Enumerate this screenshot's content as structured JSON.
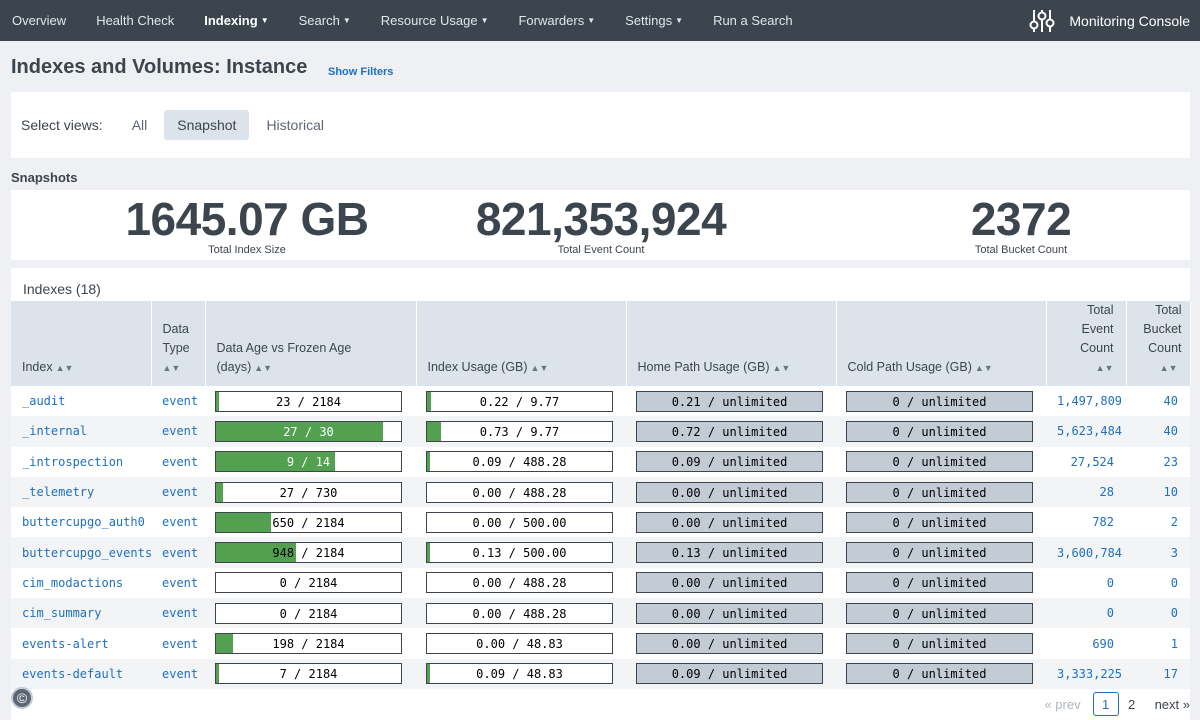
{
  "nav": {
    "items": [
      {
        "label": "Overview",
        "caret": false,
        "active": false
      },
      {
        "label": "Health Check",
        "caret": false,
        "active": false
      },
      {
        "label": "Indexing",
        "caret": true,
        "active": true
      },
      {
        "label": "Search",
        "caret": true,
        "active": false
      },
      {
        "label": "Resource Usage",
        "caret": true,
        "active": false
      },
      {
        "label": "Forwarders",
        "caret": true,
        "active": false
      },
      {
        "label": "Settings",
        "caret": true,
        "active": false
      },
      {
        "label": "Run a Search",
        "caret": false,
        "active": false
      }
    ],
    "brand": "Monitoring Console",
    "brand_icon": "sliders-icon"
  },
  "page": {
    "title": "Indexes and Volumes: Instance",
    "show_filters": "Show Filters"
  },
  "views": {
    "label": "Select views:",
    "options": [
      "All",
      "Snapshot",
      "Historical"
    ],
    "selected": "Snapshot"
  },
  "snapshots": {
    "header": "Snapshots",
    "stats": [
      {
        "value": "1645.07 GB",
        "label": "Total Index Size"
      },
      {
        "value": "821,353,924",
        "label": "Total Event Count"
      },
      {
        "value": "2372",
        "label": "Total Bucket Count"
      }
    ]
  },
  "indexes": {
    "title": "Indexes (18)",
    "columns": [
      "Index",
      "Data Type",
      "Data Age vs Frozen Age (days)",
      "Index Usage (GB)",
      "Home Path Usage (GB)",
      "Cold Path Usage (GB)",
      "Total Event Count",
      "Total Bucket Count"
    ],
    "rows": [
      {
        "index": "_audit",
        "type": "event",
        "age": "23 / 2184",
        "age_frac": 0.0105,
        "usage": "0.22 / 9.77",
        "usage_frac": 0.0225,
        "home": "0.21 / unlimited",
        "cold": "0 / unlimited",
        "events": "1,497,809",
        "buckets": "40"
      },
      {
        "index": "_internal",
        "type": "event",
        "age": "27 / 30",
        "age_frac": 0.9,
        "usage": "0.73 / 9.77",
        "usage_frac": 0.075,
        "home": "0.72 / unlimited",
        "cold": "0 / unlimited",
        "events": "5,623,484",
        "buckets": "40"
      },
      {
        "index": "_introspection",
        "type": "event",
        "age": "9 / 14",
        "age_frac": 0.643,
        "usage": "0.09 / 488.28",
        "usage_frac": 0.0002,
        "home": "0.09 / unlimited",
        "cold": "0 / unlimited",
        "events": "27,524",
        "buckets": "23"
      },
      {
        "index": "_telemetry",
        "type": "event",
        "age": "27 / 730",
        "age_frac": 0.037,
        "usage": "0.00 / 488.28",
        "usage_frac": 0,
        "home": "0.00 / unlimited",
        "cold": "0 / unlimited",
        "events": "28",
        "buckets": "10"
      },
      {
        "index": "buttercupgo_auth0",
        "type": "event",
        "age": "650 / 2184",
        "age_frac": 0.298,
        "usage": "0.00 / 500.00",
        "usage_frac": 0,
        "home": "0.00 / unlimited",
        "cold": "0 / unlimited",
        "events": "782",
        "buckets": "2"
      },
      {
        "index": "buttercupgo_events",
        "type": "event",
        "age": "948 / 2184",
        "age_frac": 0.434,
        "usage": "0.13 / 500.00",
        "usage_frac": 0.0003,
        "home": "0.13 / unlimited",
        "cold": "0 / unlimited",
        "events": "3,600,784",
        "buckets": "3"
      },
      {
        "index": "cim_modactions",
        "type": "event",
        "age": "0 / 2184",
        "age_frac": 0,
        "usage": "0.00 / 488.28",
        "usage_frac": 0,
        "home": "0.00 / unlimited",
        "cold": "0 / unlimited",
        "events": "0",
        "buckets": "0"
      },
      {
        "index": "cim_summary",
        "type": "event",
        "age": "0 / 2184",
        "age_frac": 0,
        "usage": "0.00 / 488.28",
        "usage_frac": 0,
        "home": "0.00 / unlimited",
        "cold": "0 / unlimited",
        "events": "0",
        "buckets": "0"
      },
      {
        "index": "events-alert",
        "type": "event",
        "age": "198 / 2184",
        "age_frac": 0.091,
        "usage": "0.00 / 48.83",
        "usage_frac": 0,
        "home": "0.00 / unlimited",
        "cold": "0 / unlimited",
        "events": "690",
        "buckets": "1"
      },
      {
        "index": "events-default",
        "type": "event",
        "age": "7 / 2184",
        "age_frac": 0.0032,
        "usage": "0.09 / 48.83",
        "usage_frac": 0.0018,
        "home": "0.09 / unlimited",
        "cold": "0 / unlimited",
        "events": "3,333,225",
        "buckets": "17"
      }
    ]
  },
  "pager": {
    "prev": "« prev",
    "pages": [
      "1",
      "2"
    ],
    "current": "1",
    "next": "next »"
  },
  "colors": {
    "nav_bg": "#3c444d",
    "bar_fill": "#53a051",
    "link": "#1e70bf"
  }
}
